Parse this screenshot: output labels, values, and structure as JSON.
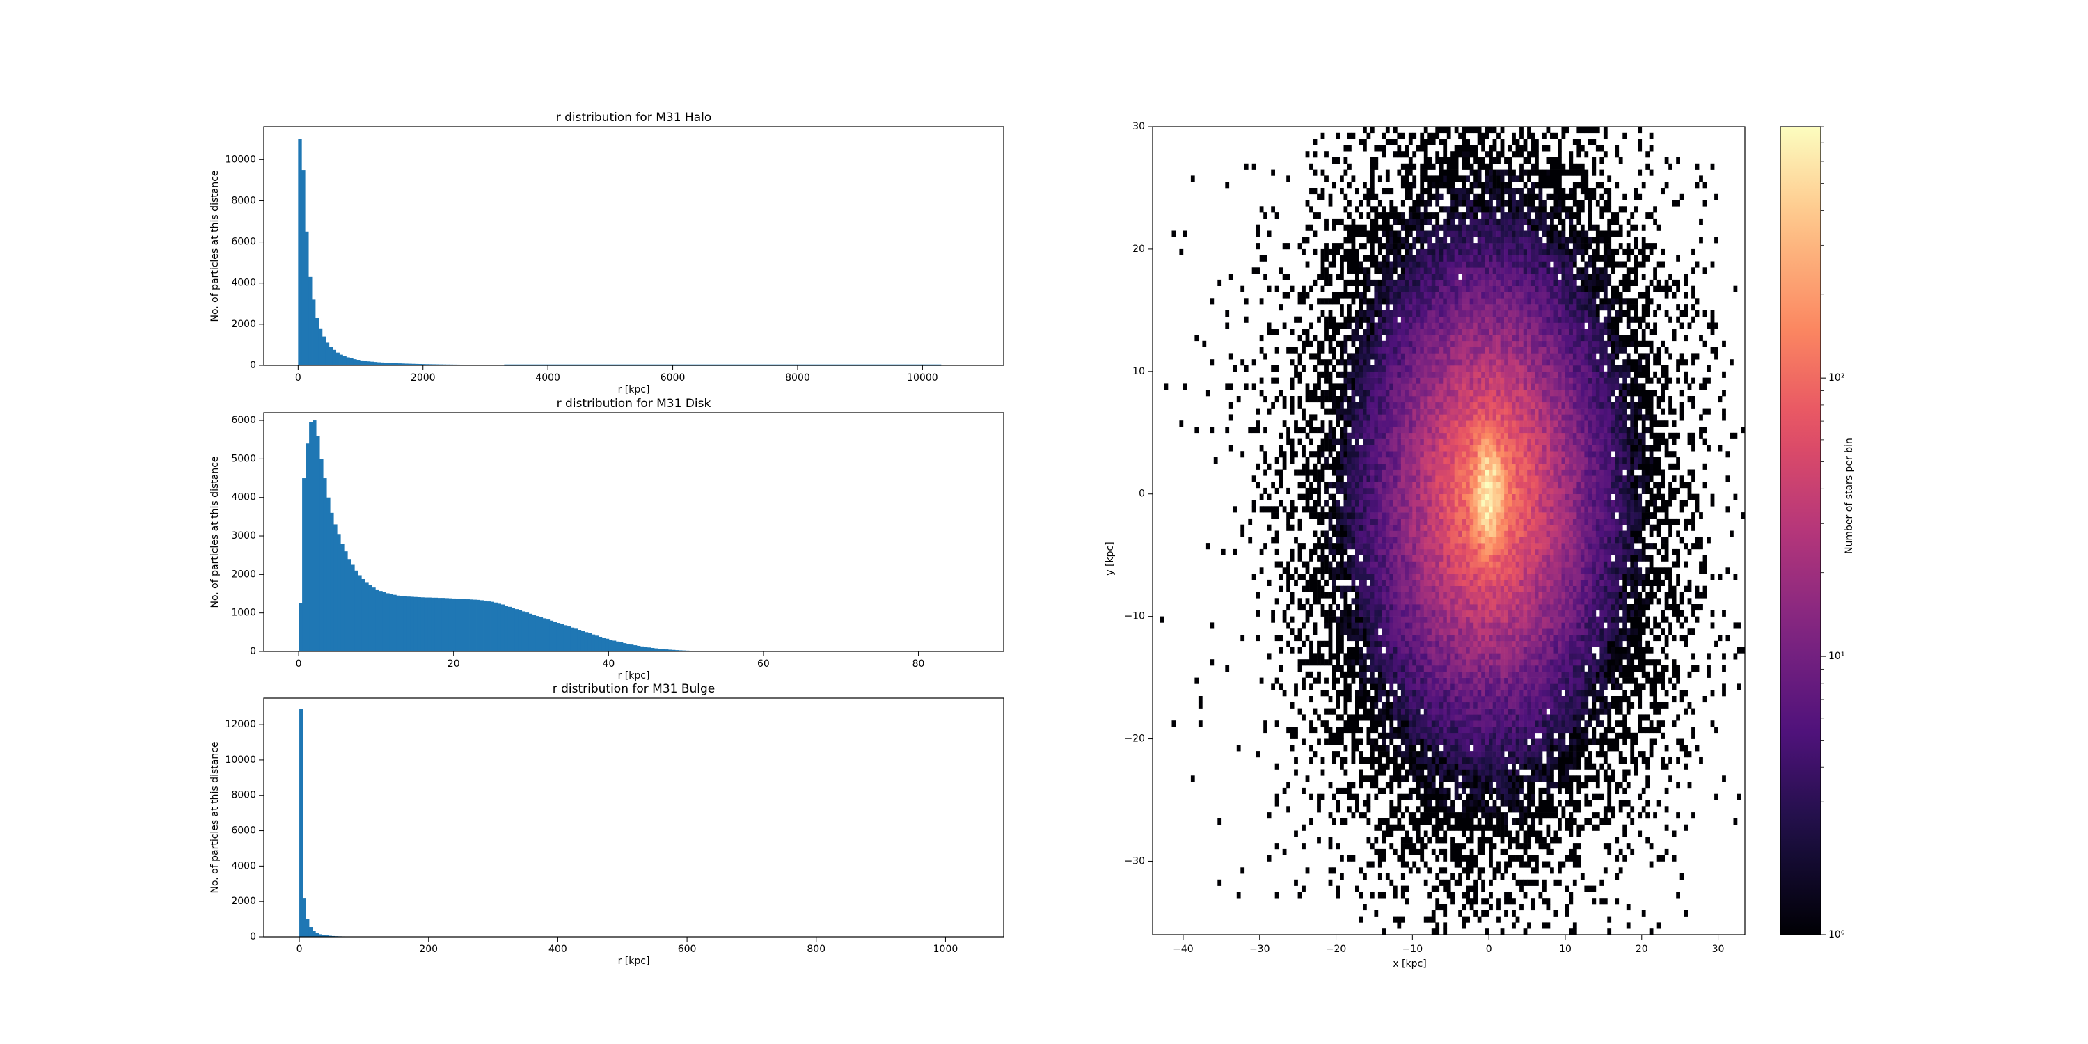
{
  "colors": {
    "bar": "#1f77b4",
    "axis": "#000000",
    "background": "#ffffff",
    "colormap": "magma"
  },
  "chart_data": [
    {
      "type": "bar",
      "id": "halo",
      "title": "r distribution for M31 Halo",
      "xlabel": "r [kpc]",
      "ylabel": "No. of particles at this distance",
      "xlim": [
        -550,
        11300
      ],
      "ylim": [
        0,
        11600
      ],
      "xticks": [
        0,
        2000,
        4000,
        6000,
        8000,
        10000
      ],
      "yticks": [
        0,
        2000,
        4000,
        6000,
        8000,
        10000
      ],
      "bin_width": 55,
      "bin_start": 0,
      "values": [
        11000,
        9500,
        6500,
        4300,
        3200,
        2300,
        1800,
        1400,
        1100,
        900,
        750,
        620,
        520,
        450,
        390,
        340,
        300,
        270,
        240,
        215,
        195,
        180,
        165,
        150,
        140,
        130,
        120,
        112,
        105,
        98,
        92,
        86,
        81,
        76,
        71,
        67,
        63,
        59,
        56,
        53,
        50,
        47,
        44,
        42,
        40,
        38,
        36,
        34,
        32,
        30,
        28,
        27,
        26,
        25,
        24,
        23,
        22,
        21,
        20,
        19
      ],
      "tail_value": 10,
      "tail_end": 10300
    },
    {
      "type": "bar",
      "id": "disk",
      "title": "r distribution for M31 Disk",
      "xlabel": "r [kpc]",
      "ylabel": "No. of particles at this distance",
      "xlim": [
        -4.5,
        91
      ],
      "ylim": [
        0,
        6200
      ],
      "xticks": [
        0,
        20,
        40,
        60,
        80
      ],
      "yticks": [
        0,
        1000,
        2000,
        3000,
        4000,
        5000,
        6000
      ],
      "bin_width": 0.45,
      "bin_start": 0,
      "values": [
        1250,
        4500,
        5400,
        5950,
        6000,
        5600,
        5000,
        4500,
        4000,
        3600,
        3300,
        3050,
        2800,
        2600,
        2400,
        2250,
        2100,
        1980,
        1880,
        1800,
        1720,
        1660,
        1610,
        1570,
        1540,
        1510,
        1490,
        1470,
        1450,
        1440,
        1430,
        1425,
        1420,
        1415,
        1410,
        1405,
        1400,
        1400,
        1395,
        1395,
        1390,
        1390,
        1385,
        1380,
        1375,
        1370,
        1365,
        1360,
        1355,
        1350,
        1345,
        1340,
        1330,
        1320,
        1300,
        1290,
        1270,
        1240,
        1220,
        1190,
        1160,
        1130,
        1100,
        1070,
        1040,
        1010,
        980,
        950,
        920,
        890,
        860,
        830,
        800,
        770,
        740,
        710,
        680,
        650,
        620,
        590,
        560,
        530,
        500,
        470,
        440,
        410,
        380,
        355,
        330,
        305,
        280,
        257,
        235,
        215,
        196,
        178,
        161,
        145,
        130,
        116,
        103,
        91,
        80,
        70,
        61,
        53,
        46,
        40,
        34,
        29,
        25,
        21,
        17,
        14,
        11,
        9,
        7,
        5,
        4,
        3
      ]
    },
    {
      "type": "bar",
      "id": "bulge",
      "title": "r distribution for M31 Bulge",
      "xlabel": "r [kpc]",
      "ylabel": "No. of particles at this distance",
      "xlim": [
        -55,
        1090
      ],
      "ylim": [
        0,
        13500
      ],
      "xticks": [
        0,
        200,
        400,
        600,
        800,
        1000
      ],
      "yticks": [
        0,
        2000,
        4000,
        6000,
        8000,
        10000,
        12000
      ],
      "bin_width": 5,
      "bin_start": 0,
      "values": [
        12900,
        2200,
        1000,
        550,
        320,
        200,
        140,
        100,
        75,
        55,
        42,
        33,
        26,
        21,
        17,
        14,
        11,
        9,
        7,
        6,
        5,
        4,
        3,
        3,
        2,
        2,
        1,
        1
      ]
    },
    {
      "type": "heatmap",
      "id": "xy",
      "xlabel": "x [kpc]",
      "ylabel": "y [kpc]",
      "xlim": [
        -44,
        33.5
      ],
      "ylim": [
        -36,
        30
      ],
      "xticks": [
        -40,
        -30,
        -20,
        -10,
        0,
        10,
        20,
        30
      ],
      "yticks": [
        -30,
        -20,
        -10,
        0,
        10,
        20,
        30
      ],
      "bin_size": 0.5,
      "center": [
        0,
        0
      ],
      "scale_x": 8.5,
      "scale_y": 10.5,
      "peak_count": 800,
      "colorbar": {
        "label": "Number  of  stars  per  bin",
        "scale": "log",
        "range": [
          1,
          800
        ],
        "ticks": [
          {
            "value": 1,
            "label": "10⁰"
          },
          {
            "value": 10,
            "label": "10¹"
          },
          {
            "value": 100,
            "label": "10²"
          }
        ]
      }
    }
  ]
}
